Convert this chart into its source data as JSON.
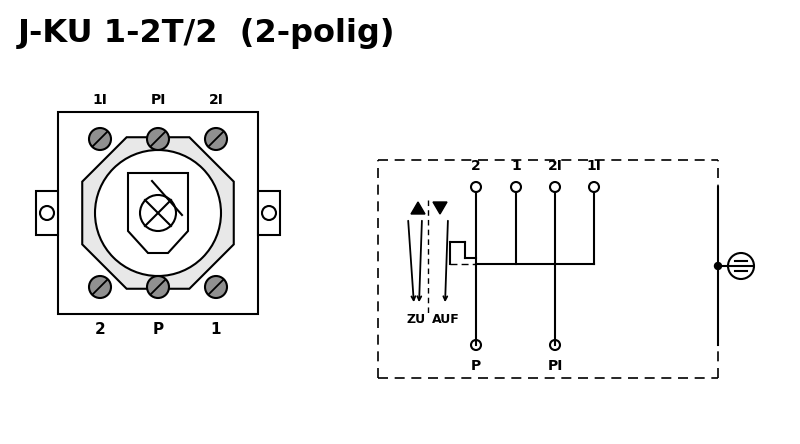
{
  "title": "J-KU 1-2T/2  (2-polig)",
  "bg_color": "#ffffff",
  "fg_color": "#000000",
  "title_fontsize": 23,
  "top_labels_left": [
    "1I",
    "PI",
    "2I"
  ],
  "bot_labels_left": [
    "2",
    "P",
    "1"
  ],
  "top_labels_right": [
    "2",
    "1",
    "2I",
    "1I"
  ],
  "bot_labels_right": [
    "P",
    "PI"
  ],
  "screw_color": "#909090",
  "lw": 1.5
}
